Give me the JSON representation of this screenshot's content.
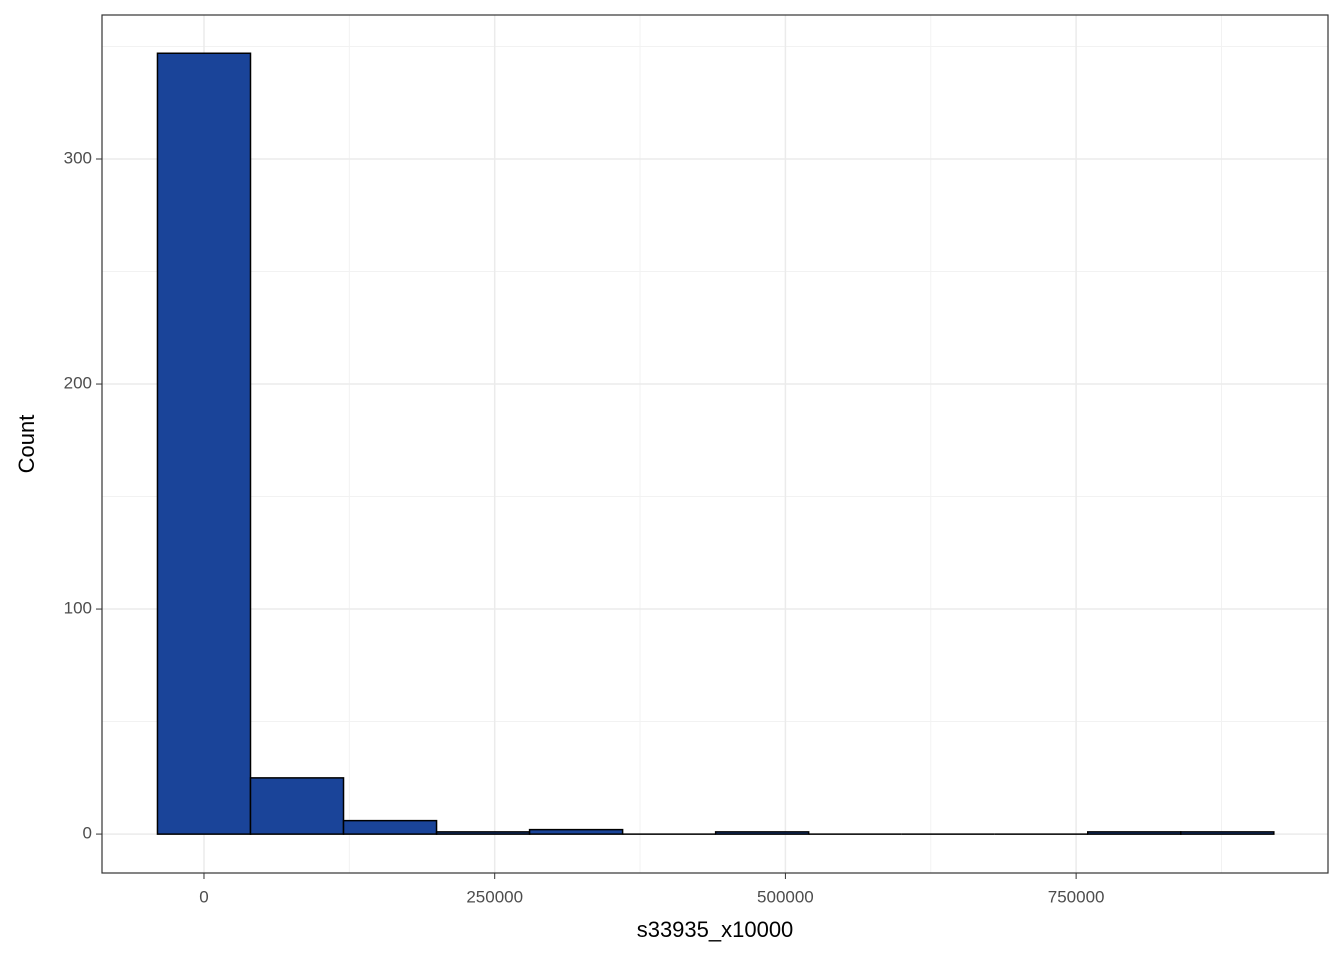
{
  "chart_data": {
    "type": "histogram",
    "x_label": "s33935_x10000",
    "y_label": "Count",
    "bins": [
      -40000,
      40000,
      120000,
      200000,
      280000,
      360000,
      440000,
      520000,
      600000,
      680000,
      760000,
      840000,
      920000
    ],
    "counts": [
      347,
      25,
      6,
      1,
      2,
      0,
      1,
      0,
      0,
      0,
      1,
      1
    ],
    "color": "#1a4499",
    "edge_color": "#000000",
    "xlim": [
      -87700,
      966600
    ],
    "ylim": [
      -17.3,
      364
    ],
    "xticks": [
      0,
      250000,
      500000,
      750000
    ],
    "yticks": [
      0,
      100,
      200,
      300
    ],
    "grid": true
  }
}
